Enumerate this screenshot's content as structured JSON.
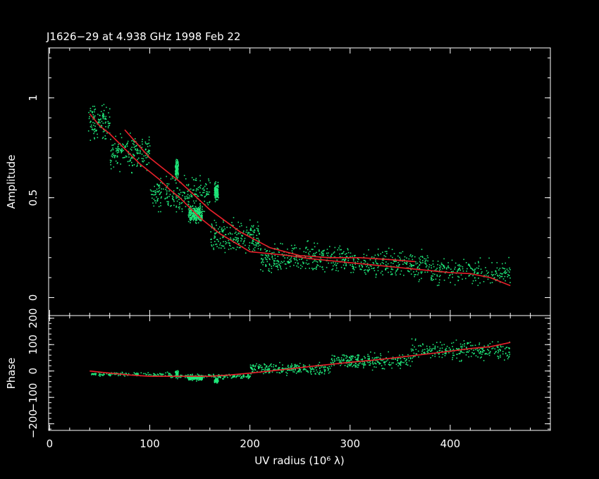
{
  "chart_data": {
    "type": "scatter",
    "title": "J1626−29 at 4.938 GHz 1998 Feb 22",
    "xlabel": "UV radius  (10⁶ λ)",
    "xlim": [
      -1,
      500
    ],
    "x_ticks": [
      0,
      100,
      200,
      300,
      400
    ],
    "colors": {
      "points": "#1fe87a",
      "model": "#e8202a",
      "axes": "#ffffff",
      "background": "#000000"
    },
    "panels": [
      {
        "name": "amplitude",
        "ylabel": "Amplitude",
        "ylim": [
          -0.09,
          1.25
        ],
        "y_ticks": [
          0,
          0.5,
          1
        ],
        "y_tick_labels": [
          "0",
          "0.5",
          "1"
        ],
        "model_line": [
          [
            40,
            0.92
          ],
          [
            50,
            0.86
          ],
          [
            60,
            0.82
          ],
          [
            70,
            0.77
          ],
          [
            80,
            0.72
          ],
          [
            90,
            0.67
          ],
          [
            100,
            0.63
          ],
          [
            110,
            0.59
          ],
          [
            120,
            0.54
          ],
          [
            130,
            0.5
          ],
          [
            140,
            0.45
          ],
          [
            150,
            0.4
          ],
          [
            160,
            0.36
          ],
          [
            170,
            0.32
          ],
          [
            180,
            0.29
          ],
          [
            190,
            0.26
          ],
          [
            200,
            0.23
          ],
          [
            220,
            0.22
          ],
          [
            240,
            0.21
          ],
          [
            260,
            0.195
          ],
          [
            280,
            0.185
          ],
          [
            300,
            0.175
          ],
          [
            320,
            0.165
          ],
          [
            340,
            0.155
          ],
          [
            360,
            0.145
          ],
          [
            380,
            0.135
          ],
          [
            400,
            0.125
          ],
          [
            420,
            0.12
          ],
          [
            440,
            0.1
          ],
          [
            460,
            0.06
          ]
        ],
        "model_line_2": [
          [
            75,
            0.84
          ],
          [
            100,
            0.7
          ],
          [
            130,
            0.58
          ],
          [
            160,
            0.44
          ],
          [
            190,
            0.33
          ],
          [
            220,
            0.25
          ],
          [
            250,
            0.21
          ],
          [
            280,
            0.2
          ],
          [
            310,
            0.2
          ],
          [
            340,
            0.19
          ],
          [
            365,
            0.18
          ]
        ],
        "point_clusters": [
          {
            "x_from": 38,
            "x_to": 60,
            "y_center": 0.88,
            "y_spread": 0.12,
            "n": 120
          },
          {
            "x_from": 60,
            "x_to": 100,
            "y_center": 0.73,
            "y_spread": 0.12,
            "n": 180
          },
          {
            "x_from": 100,
            "x_to": 160,
            "y_center": 0.52,
            "y_spread": 0.12,
            "n": 240
          },
          {
            "x_from": 160,
            "x_to": 210,
            "y_center": 0.3,
            "y_spread": 0.12,
            "n": 220
          },
          {
            "x_from": 210,
            "x_to": 300,
            "y_center": 0.2,
            "y_spread": 0.1,
            "n": 320
          },
          {
            "x_from": 300,
            "x_to": 380,
            "y_center": 0.17,
            "y_spread": 0.1,
            "n": 260
          },
          {
            "x_from": 380,
            "x_to": 460,
            "y_center": 0.13,
            "y_spread": 0.09,
            "n": 220
          },
          {
            "x_from": 125,
            "x_to": 128,
            "y_center": 0.65,
            "y_spread": 0.06,
            "n": 120
          },
          {
            "x_from": 138,
            "x_to": 152,
            "y_center": 0.42,
            "y_spread": 0.06,
            "n": 220
          },
          {
            "x_from": 164,
            "x_to": 168,
            "y_center": 0.53,
            "y_spread": 0.06,
            "n": 120
          }
        ]
      },
      {
        "name": "phase",
        "ylabel": "Phase",
        "ylim": [
          -225,
          210
        ],
        "y_ticks": [
          -200,
          -100,
          0,
          100,
          200
        ],
        "y_tick_labels": [
          "−200",
          "−100",
          "0",
          "100",
          "200"
        ],
        "model_line": [
          [
            40,
            0
          ],
          [
            60,
            -8
          ],
          [
            80,
            -15
          ],
          [
            100,
            -20
          ],
          [
            120,
            -20
          ],
          [
            140,
            -20
          ],
          [
            160,
            -20
          ],
          [
            180,
            -15
          ],
          [
            200,
            -8
          ],
          [
            220,
            0
          ],
          [
            240,
            8
          ],
          [
            260,
            17
          ],
          [
            280,
            25
          ],
          [
            300,
            33
          ],
          [
            320,
            40
          ],
          [
            340,
            48
          ],
          [
            360,
            57
          ],
          [
            380,
            66
          ],
          [
            400,
            75
          ],
          [
            420,
            85
          ],
          [
            440,
            92
          ],
          [
            460,
            108
          ]
        ],
        "point_clusters": [
          {
            "x_from": 40,
            "x_to": 120,
            "y_center": -10,
            "y_spread": 10,
            "n": 120
          },
          {
            "x_from": 120,
            "x_to": 200,
            "y_center": -18,
            "y_spread": 12,
            "n": 200
          },
          {
            "x_from": 200,
            "x_to": 280,
            "y_center": 10,
            "y_spread": 30,
            "n": 250
          },
          {
            "x_from": 280,
            "x_to": 360,
            "y_center": 40,
            "y_spread": 40,
            "n": 260
          },
          {
            "x_from": 360,
            "x_to": 460,
            "y_center": 80,
            "y_spread": 50,
            "n": 260
          },
          {
            "x_from": 125,
            "x_to": 128,
            "y_center": -10,
            "y_spread": 18,
            "n": 60
          },
          {
            "x_from": 138,
            "x_to": 152,
            "y_center": -25,
            "y_spread": 12,
            "n": 140
          },
          {
            "x_from": 164,
            "x_to": 168,
            "y_center": -35,
            "y_spread": 12,
            "n": 60
          }
        ]
      }
    ]
  }
}
